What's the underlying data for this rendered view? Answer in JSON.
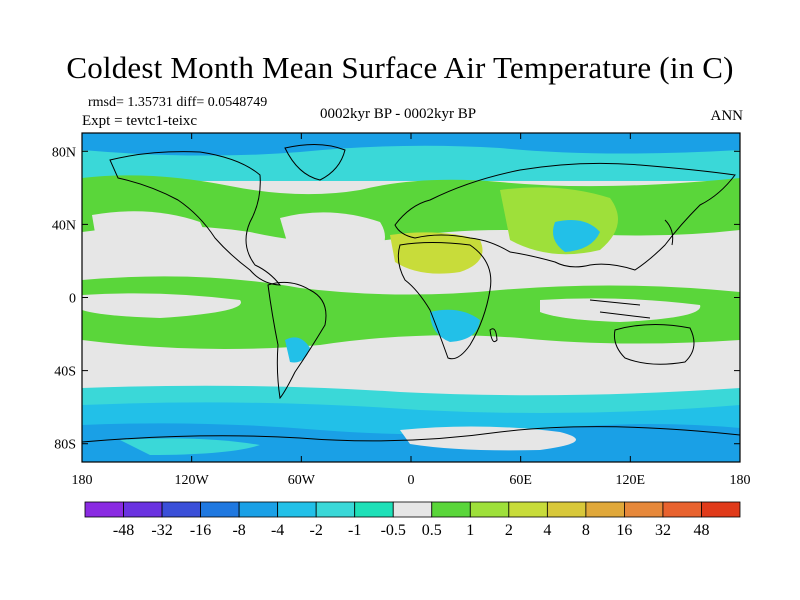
{
  "title": "Coldest Month Mean Surface Air Temperature (in C)",
  "stats": "rmsd= 1.35731  diff= 0.0548749",
  "expt": "Expt = tevtc1-teixc",
  "period": "0002kyr BP - 0002kyr BP",
  "season": "ANN",
  "lat_ticks": [
    {
      "label": "80N",
      "lat": 80
    },
    {
      "label": "40N",
      "lat": 40
    },
    {
      "label": "0",
      "lat": 0
    },
    {
      "label": "40S",
      "lat": -40
    },
    {
      "label": "80S",
      "lat": -80
    }
  ],
  "lon_ticks": [
    {
      "label": "180",
      "lon": -180
    },
    {
      "label": "120W",
      "lon": -120
    },
    {
      "label": "60W",
      "lon": -60
    },
    {
      "label": "0",
      "lon": 0
    },
    {
      "label": "60E",
      "lon": 60
    },
    {
      "label": "120E",
      "lon": 120
    },
    {
      "label": "180",
      "lon": 180
    }
  ],
  "colorbar": {
    "colors": [
      "#8a2be2",
      "#6a32e0",
      "#3a4fd8",
      "#1f78e0",
      "#1aa0e6",
      "#22c0e8",
      "#3ad8d8",
      "#1ee0b8",
      "#e6e6e6",
      "#5ad63a",
      "#9ee03a",
      "#c8dc3a",
      "#d8c83a",
      "#e0a83a",
      "#e6883a",
      "#e8622e",
      "#e03a1a"
    ],
    "labels": [
      "-48",
      "-32",
      "-16",
      "-8",
      "-4",
      "-2",
      "-1",
      "-0.5",
      "0.5",
      "1",
      "2",
      "4",
      "8",
      "16",
      "32",
      "48"
    ]
  },
  "field_colors": {
    "neutral": "#e6e6e6",
    "green": "#5ad63a",
    "lightgreen": "#9ee03a",
    "yellowgreen": "#c8dc3a",
    "cyan": "#22c0e8",
    "aqua": "#3ad8d8",
    "blue": "#1aa0e6",
    "teal": "#1ee0b8"
  }
}
